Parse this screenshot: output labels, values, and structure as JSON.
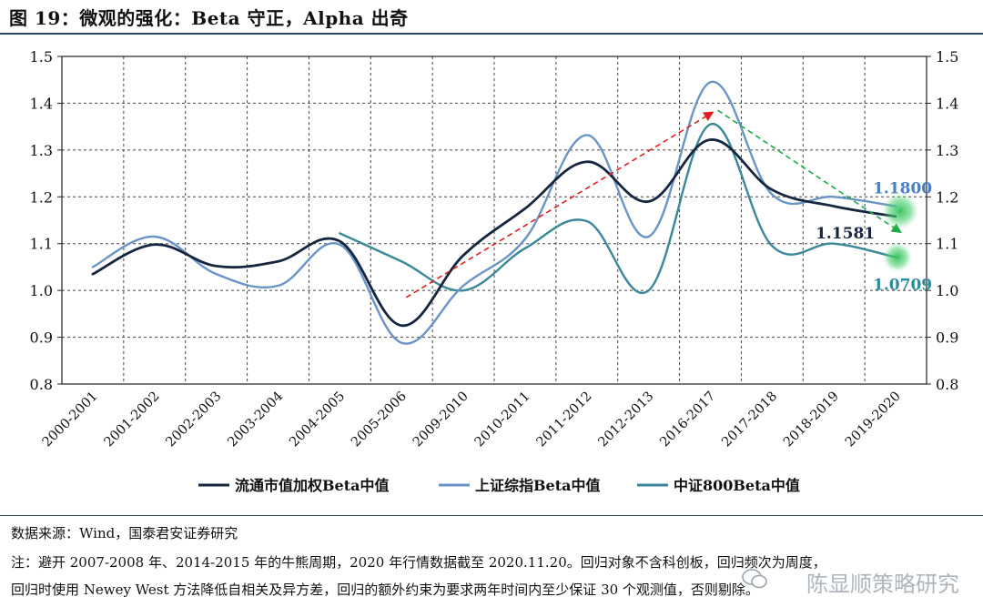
{
  "title": "图 19：微观的强化：Beta 守正，Alpha 出奇",
  "chart_data": {
    "type": "line",
    "categories": [
      "2000-2001",
      "2001-2002",
      "2002-2003",
      "2003-2004",
      "2004-2005",
      "2005-2006",
      "2009-2010",
      "2010-2011",
      "2011-2012",
      "2012-2013",
      "2016-2017",
      "2017-2018",
      "2018-2019",
      "2019-2020"
    ],
    "ylim": [
      0.8,
      1.5
    ],
    "yticks": [
      "0.8",
      "0.9",
      "1.0",
      "1.1",
      "1.2",
      "1.3",
      "1.4",
      "1.5"
    ],
    "grid": true,
    "legend_position": "bottom",
    "series": [
      {
        "name": "流通市值加权Beta中值",
        "color": "#16263f",
        "values": [
          1.035,
          1.098,
          1.052,
          1.062,
          1.105,
          0.925,
          1.075,
          1.175,
          1.275,
          1.19,
          1.322,
          1.215,
          1.18,
          1.1581
        ]
      },
      {
        "name": "上证综指Beta中值",
        "color": "#6a94c6",
        "values": [
          1.05,
          1.115,
          1.035,
          1.01,
          1.098,
          0.888,
          1.01,
          1.11,
          1.332,
          1.115,
          1.445,
          1.205,
          1.2,
          1.18
        ]
      },
      {
        "name": "中证800Beta中值",
        "color": "#3a8799",
        "values": [
          null,
          null,
          null,
          null,
          1.122,
          1.062,
          1.0,
          1.09,
          1.148,
          1.0,
          1.355,
          1.095,
          1.1,
          1.0709
        ]
      }
    ],
    "annotations": [
      {
        "text": "1.1800",
        "color": "#4a7fbf"
      },
      {
        "text": "1.1581",
        "color": "#16263f"
      },
      {
        "text": "1.0709",
        "color": "#2f8a9a"
      }
    ]
  },
  "source": "数据来源：Wind，国泰君安证券研究",
  "footnote_line1": "注：避开 2007-2008 年、2014-2015 年的牛熊周期，2020 年行情数据截至 2020.11.20。回归对象不含科创板，回归频次为周度，",
  "footnote_line2": "回归时使用 Newey West 方法降低自相关及异方差，回归的额外约束为要求两年时间内至少保证 30 个观测值，否则剔除。",
  "watermark": "陈显顺策略研究"
}
